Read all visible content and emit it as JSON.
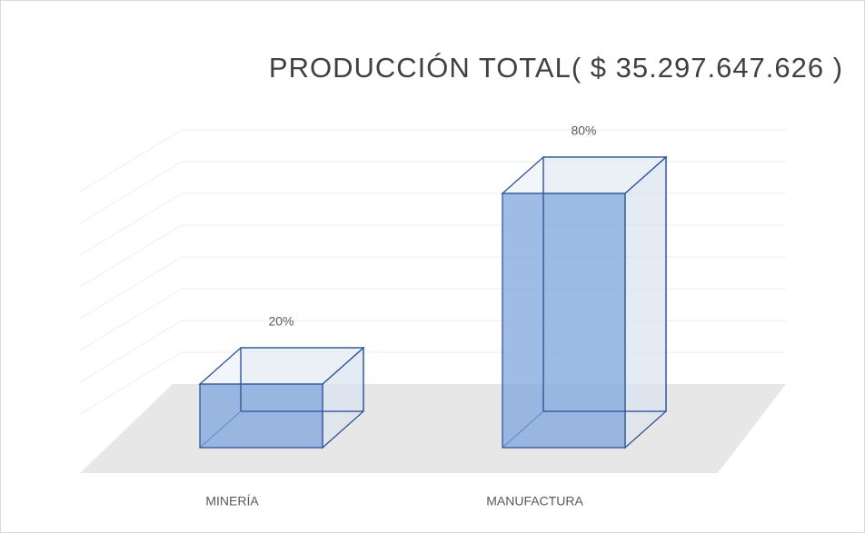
{
  "chart_data": {
    "type": "bar3d",
    "title": "PRODUCCIÓN  TOTAL( $ 35.297.647.626 )",
    "categories": [
      "MINERÍA",
      "MANUFACTURA"
    ],
    "values": [
      20,
      80
    ],
    "value_labels": [
      "20%",
      "80%"
    ],
    "color": "#7ea6dc",
    "ylim": [
      0,
      90
    ],
    "yticks": [
      0,
      10,
      20,
      30,
      40,
      50,
      60,
      70,
      80
    ],
    "grid": true
  }
}
